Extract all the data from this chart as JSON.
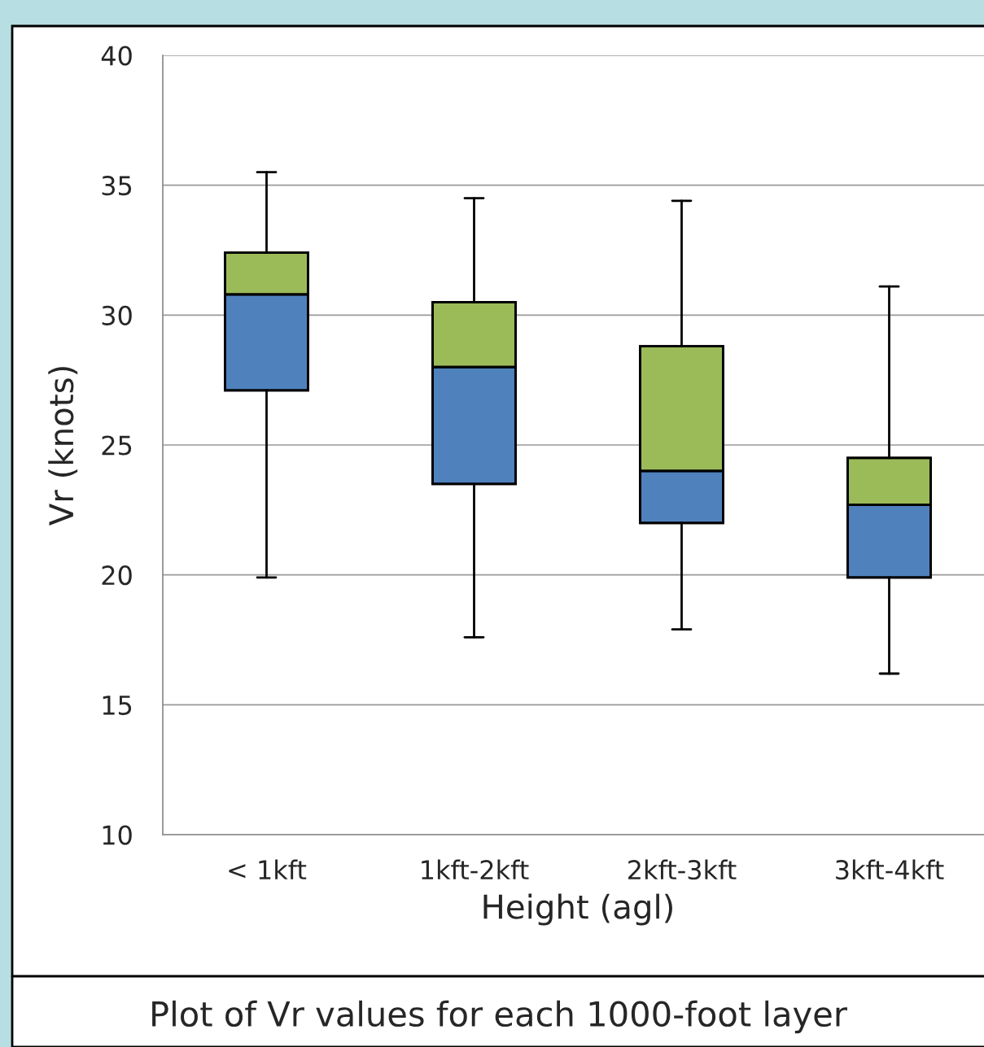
{
  "chart_data": {
    "type": "box",
    "xlabel": "Height (agl)",
    "ylabel": "Vr (knots)",
    "categories": [
      "< 1kft",
      "1kft-2kft",
      "2kft-3kft",
      "3kft-4kft"
    ],
    "boxes": [
      {
        "low": 19.9,
        "q1": 27.1,
        "median": 30.8,
        "q3": 32.4,
        "high": 35.5
      },
      {
        "low": 17.6,
        "q1": 23.5,
        "median": 28.0,
        "q3": 30.5,
        "high": 34.5
      },
      {
        "low": 17.9,
        "q1": 22.0,
        "median": 24.0,
        "q3": 28.8,
        "high": 34.4
      },
      {
        "low": 16.2,
        "q1": 19.9,
        "median": 22.7,
        "q3": 24.5,
        "high": 31.1
      }
    ],
    "colors": [
      [
        "#4f81bd",
        "#9bbb59"
      ],
      [
        "#4f81bd",
        "#9bbb59"
      ],
      [
        "#4f81bd",
        "#9bbb59"
      ],
      [
        "#4f81bd",
        "#9bbb59"
      ]
    ],
    "ylim": [
      10,
      40
    ],
    "yticks": [
      10,
      15,
      20,
      25,
      30,
      35,
      40
    ],
    "grid": "y",
    "annotations": [
      "Plot of Vr values for each 1000-foot layer"
    ]
  }
}
